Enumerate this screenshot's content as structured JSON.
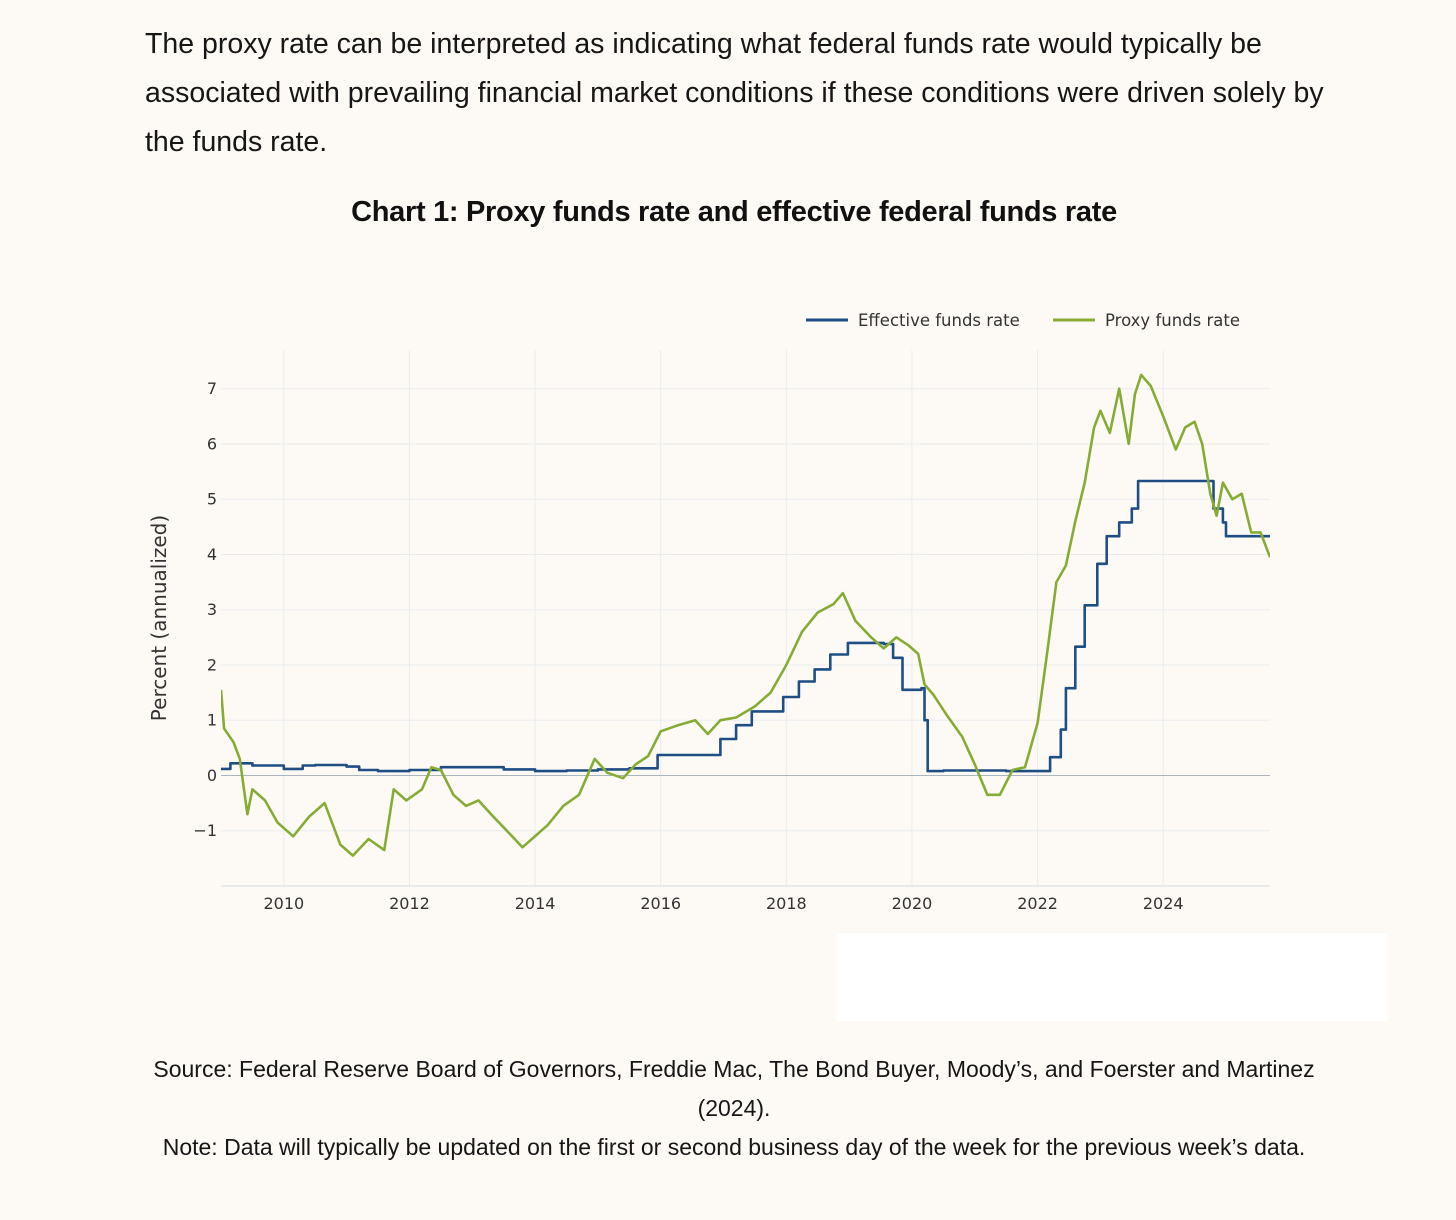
{
  "intro": {
    "text": "The proxy rate can be interpreted as indicating what federal funds rate would typically be associated with prevailing financial market conditions if these conditions were driven solely by the funds rate."
  },
  "footer": {
    "source": "Source: Federal Reserve Board of Governors, Freddie Mac, The Bond Buyer, Moody’s, and Foerster and Martinez (2024).",
    "note": "Note: Data will typically be updated on the first or second business day of the week for the previous week’s data."
  },
  "colors": {
    "effective": "#1f4e85",
    "proxy": "#86ac35",
    "grid": "#e9ecef",
    "zero_line": "#a9b4bd"
  },
  "chart_data": {
    "type": "line",
    "title": "Chart 1: Proxy funds rate and effective federal funds rate",
    "xlabel": "",
    "ylabel": "Percent (annualized)",
    "xlim": [
      2009.0,
      2025.7
    ],
    "ylim": [
      -2.0,
      7.7
    ],
    "x_ticks": [
      2010,
      2012,
      2014,
      2016,
      2018,
      2020,
      2022,
      2024
    ],
    "y_ticks": [
      -1,
      0,
      1,
      2,
      3,
      4,
      5,
      6,
      7
    ],
    "y_tick_labels": [
      "−1",
      "0",
      "1",
      "2",
      "3",
      "4",
      "5",
      "6",
      "7"
    ],
    "grid": true,
    "legend_position": "top-right",
    "series": [
      {
        "name": "Effective funds rate",
        "color": "#1f4e85",
        "step": true,
        "x": [
          2009.0,
          2009.15,
          2009.5,
          2010.0,
          2010.3,
          2010.5,
          2011.0,
          2011.2,
          2011.5,
          2012.0,
          2012.5,
          2013.0,
          2013.5,
          2014.0,
          2014.5,
          2015.0,
          2015.5,
          2015.95,
          2016.95,
          2017.2,
          2017.45,
          2017.95,
          2018.2,
          2018.45,
          2018.7,
          2018.98,
          2019.55,
          2019.7,
          2019.85,
          2020.15,
          2020.2,
          2020.25,
          2020.5,
          2021.0,
          2021.5,
          2022.2,
          2022.37,
          2022.45,
          2022.6,
          2022.75,
          2022.95,
          2023.1,
          2023.3,
          2023.5,
          2023.6,
          2024.7,
          2024.8,
          2024.95,
          2025.0,
          2025.7
        ],
        "values": [
          0.12,
          0.22,
          0.18,
          0.12,
          0.18,
          0.19,
          0.16,
          0.1,
          0.08,
          0.1,
          0.15,
          0.15,
          0.11,
          0.08,
          0.09,
          0.11,
          0.13,
          0.37,
          0.66,
          0.91,
          1.16,
          1.42,
          1.7,
          1.92,
          2.19,
          2.4,
          2.38,
          2.13,
          1.55,
          1.58,
          1.0,
          0.08,
          0.09,
          0.09,
          0.08,
          0.33,
          0.83,
          1.58,
          2.33,
          3.08,
          3.83,
          4.33,
          4.58,
          4.83,
          5.33,
          5.33,
          4.83,
          4.58,
          4.33,
          4.33
        ]
      },
      {
        "name": "Proxy funds rate",
        "color": "#86ac35",
        "step": false,
        "x": [
          2009.0,
          2009.05,
          2009.2,
          2009.3,
          2009.42,
          2009.5,
          2009.7,
          2009.9,
          2010.15,
          2010.4,
          2010.65,
          2010.9,
          2011.1,
          2011.35,
          2011.6,
          2011.75,
          2011.95,
          2012.2,
          2012.35,
          2012.5,
          2012.7,
          2012.9,
          2013.1,
          2013.3,
          2013.55,
          2013.8,
          2013.95,
          2014.2,
          2014.45,
          2014.7,
          2014.95,
          2015.15,
          2015.4,
          2015.6,
          2015.8,
          2016.0,
          2016.25,
          2016.55,
          2016.75,
          2016.95,
          2017.2,
          2017.5,
          2017.75,
          2018.0,
          2018.25,
          2018.5,
          2018.75,
          2018.9,
          2019.1,
          2019.35,
          2019.55,
          2019.75,
          2019.95,
          2020.1,
          2020.2,
          2020.35,
          2020.55,
          2020.8,
          2021.0,
          2021.2,
          2021.4,
          2021.6,
          2021.8,
          2022.0,
          2022.15,
          2022.3,
          2022.45,
          2022.6,
          2022.75,
          2022.9,
          2023.0,
          2023.15,
          2023.3,
          2023.45,
          2023.55,
          2023.65,
          2023.8,
          2024.0,
          2024.2,
          2024.35,
          2024.5,
          2024.62,
          2024.75,
          2024.85,
          2024.95,
          2025.1,
          2025.25,
          2025.4,
          2025.55,
          2025.7
        ],
        "values": [
          1.55,
          0.85,
          0.6,
          0.3,
          -0.7,
          -0.25,
          -0.45,
          -0.85,
          -1.1,
          -0.75,
          -0.5,
          -1.25,
          -1.45,
          -1.15,
          -1.35,
          -0.25,
          -0.45,
          -0.25,
          0.15,
          0.1,
          -0.35,
          -0.55,
          -0.45,
          -0.7,
          -1.0,
          -1.3,
          -1.15,
          -0.9,
          -0.55,
          -0.35,
          0.3,
          0.05,
          -0.05,
          0.2,
          0.35,
          0.8,
          0.9,
          1.0,
          0.75,
          1.0,
          1.05,
          1.25,
          1.5,
          2.0,
          2.6,
          2.95,
          3.1,
          3.3,
          2.8,
          2.5,
          2.3,
          2.5,
          2.35,
          2.2,
          1.65,
          1.45,
          1.1,
          0.7,
          0.2,
          -0.35,
          -0.35,
          0.1,
          0.15,
          0.95,
          2.2,
          3.5,
          3.8,
          4.6,
          5.3,
          6.3,
          6.6,
          6.2,
          7.0,
          6.0,
          6.9,
          7.25,
          7.05,
          6.5,
          5.9,
          6.3,
          6.4,
          6.0,
          5.1,
          4.7,
          5.3,
          5.0,
          5.1,
          4.4,
          4.4,
          3.95
        ]
      }
    ]
  }
}
